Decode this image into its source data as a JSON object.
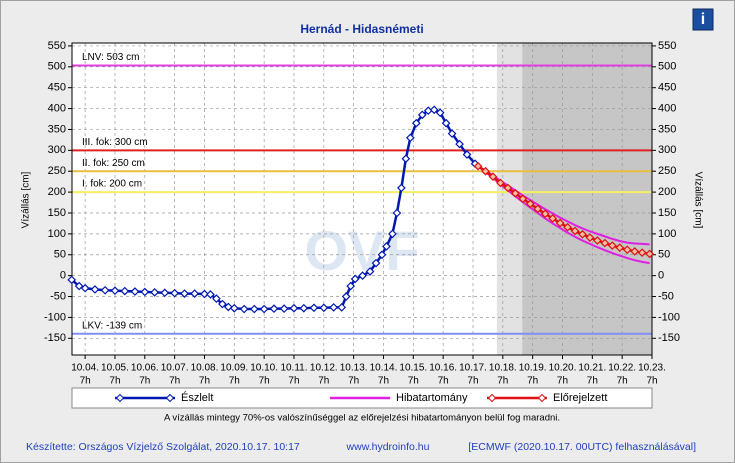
{
  "chart_data": {
    "type": "line",
    "title": "Hernád - Hidasnémeti",
    "ylabel": "Vízállás [cm]",
    "info_icon": "i",
    "watermark": "OVF",
    "xlim": [
      -0.44,
      19
    ],
    "ylim": [
      -190,
      557
    ],
    "yticks": [
      -150,
      -100,
      -50,
      0,
      50,
      100,
      150,
      200,
      250,
      300,
      350,
      400,
      450,
      500,
      550
    ],
    "xticks": [
      {
        "value": 0,
        "label": "10.04."
      },
      {
        "value": 1,
        "label": "10.05."
      },
      {
        "value": 2,
        "label": "10.06."
      },
      {
        "value": 3,
        "label": "10.07."
      },
      {
        "value": 4,
        "label": "10.08."
      },
      {
        "value": 5,
        "label": "10.09."
      },
      {
        "value": 6,
        "label": "10.10."
      },
      {
        "value": 7,
        "label": "10.11."
      },
      {
        "value": 8,
        "label": "10.12."
      },
      {
        "value": 9,
        "label": "10.13."
      },
      {
        "value": 10,
        "label": "10.14."
      },
      {
        "value": 11,
        "label": "10.15."
      },
      {
        "value": 12,
        "label": "10.16."
      },
      {
        "value": 13,
        "label": "10.17."
      },
      {
        "value": 14,
        "label": "10.18."
      },
      {
        "value": 15,
        "label": "10.19."
      },
      {
        "value": 16,
        "label": "10.20."
      },
      {
        "value": 17,
        "label": "10.21."
      },
      {
        "value": 18,
        "label": "10.22."
      },
      {
        "value": 19,
        "label": "10.23."
      }
    ],
    "xtick_hour": "7h",
    "grid": true,
    "forecast_shading": [
      {
        "from": 13.8,
        "to": 14.65,
        "color": "#e2e2e2"
      },
      {
        "from": 14.65,
        "to": 19,
        "color": "#c6c6c6"
      }
    ],
    "levels": [
      {
        "label": "LNV: 503 cm",
        "value": 503,
        "color": "#e040e0"
      },
      {
        "label": "III. fok: 300 cm",
        "value": 300,
        "color": "#e02020"
      },
      {
        "label": "II. fok: 250 cm",
        "value": 250,
        "color": "#e8c040"
      },
      {
        "label": "I. fok: 200 cm",
        "value": 200,
        "color": "#f4f060"
      },
      {
        "label": "LKV: -139 cm",
        "value": -139,
        "color": "#8090f0"
      }
    ],
    "series": [
      {
        "name": "Észlelt",
        "color": "#0018b0",
        "x": [
          -0.45,
          -0.2,
          0,
          0.33,
          0.67,
          1,
          1.33,
          1.67,
          2,
          2.33,
          2.67,
          3,
          3.33,
          3.67,
          4,
          4.2,
          4.4,
          4.6,
          4.8,
          5,
          5.33,
          5.67,
          6,
          6.33,
          6.67,
          7,
          7.33,
          7.67,
          8,
          8.33,
          8.6,
          8.75,
          8.9,
          9.05,
          9.3,
          9.55,
          9.75,
          9.95,
          10.1,
          10.3,
          10.45,
          10.6,
          10.75,
          10.9,
          11.1,
          11.3,
          11.5,
          11.7,
          11.9,
          12.1,
          12.3,
          12.55,
          12.8,
          13.07
        ],
        "values": [
          -10,
          -25,
          -30,
          -33,
          -35,
          -36,
          -37,
          -38,
          -39,
          -40,
          -41,
          -42,
          -43,
          -43,
          -44,
          -45,
          -55,
          -68,
          -75,
          -78,
          -80,
          -80,
          -80,
          -79,
          -79,
          -78,
          -78,
          -77,
          -77,
          -76,
          -76,
          -50,
          -25,
          -8,
          0,
          10,
          30,
          50,
          70,
          100,
          150,
          210,
          280,
          330,
          365,
          385,
          395,
          397,
          390,
          365,
          340,
          315,
          290,
          268
        ]
      },
      {
        "name": "Hibatartomány",
        "color": "#e020e0",
        "x": [
          13.17,
          13.42,
          13.67,
          13.92,
          14.17,
          14.42,
          14.67,
          14.92,
          15.17,
          15.42,
          15.67,
          15.92,
          16.17,
          16.42,
          16.67,
          16.92,
          17.17,
          17.42,
          17.67,
          17.92,
          18.17,
          18.42,
          18.67,
          18.92
        ],
        "upper": [
          262,
          252,
          240,
          227,
          216,
          204,
          192,
          181,
          170,
          159,
          149,
          139,
          130,
          121,
          113,
          106,
          100,
          94,
          88,
          83,
          79,
          77,
          76,
          75
        ],
        "lower": [
          262,
          248,
          234,
          218,
          204,
          190,
          176,
          163,
          150,
          137,
          125,
          114,
          103,
          93,
          84,
          76,
          68,
          61,
          54,
          48,
          42,
          37,
          33,
          30
        ]
      },
      {
        "name": "Előrejelzett",
        "color": "#e01010",
        "x": [
          13.17,
          13.42,
          13.67,
          13.92,
          14.17,
          14.42,
          14.67,
          14.92,
          15.17,
          15.42,
          15.67,
          15.92,
          16.17,
          16.42,
          16.67,
          16.92,
          17.17,
          17.42,
          17.67,
          17.92,
          18.17,
          18.42,
          18.67,
          18.92
        ],
        "values": [
          262,
          250,
          237,
          222,
          210,
          197,
          184,
          172,
          160,
          148,
          137,
          126,
          116,
          107,
          99,
          91,
          84,
          78,
          72,
          67,
          62,
          58,
          55,
          52
        ]
      }
    ],
    "note": "A vízállás mintegy 70%-os valószínűséggel az előrejelzési hibatartományon belül fog maradni.",
    "footer": {
      "author": "Készítette: Országos Vízjelző Szolgálat, 2020.10.17. 10:17",
      "url": "www.hydroinfo.hu",
      "source": "[ECMWF (2020.10.17. 00UTC) felhasználásával]"
    }
  }
}
